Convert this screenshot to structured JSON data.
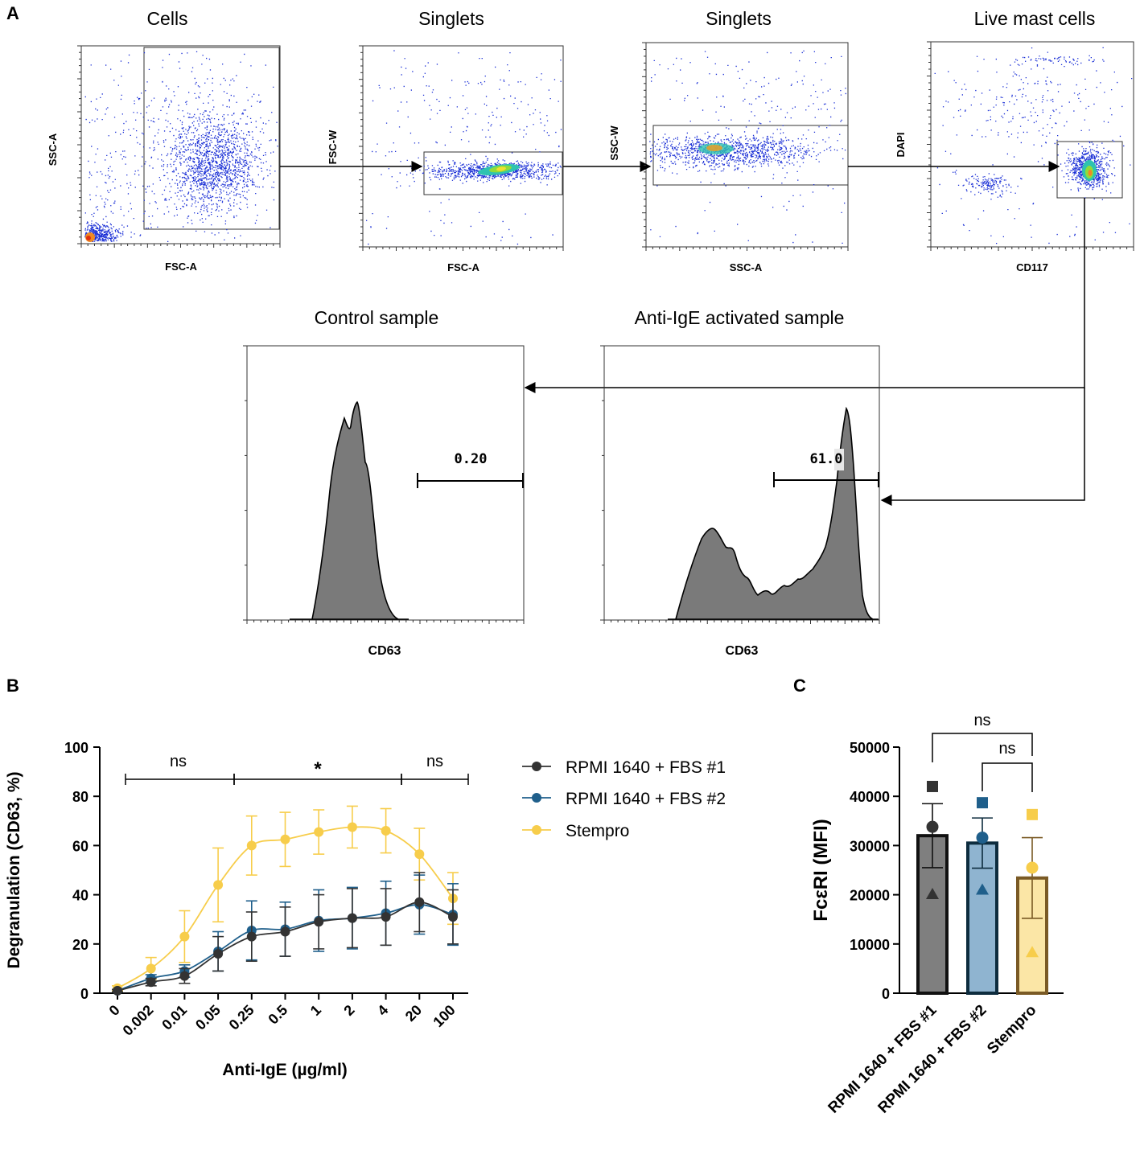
{
  "panel_labels": {
    "a": "A",
    "b": "B",
    "c": "C"
  },
  "colors": {
    "rpmi1": "#333333",
    "rpmi2": "#1f5f8b",
    "stempro": "#f7cd4b",
    "bar_rpmi1_fill": "#7f7f7f",
    "bar_rpmi2_fill": "#8fb4d0",
    "bar_stempro_fill": "#fbe6a6",
    "bar_stempro_edge": "#7a5a25",
    "hist_fill": "#7a7a7a"
  },
  "panel_a": {
    "plots": [
      {
        "title": "Cells",
        "xlabel": "FSC-A",
        "ylabel": "SSC-A"
      },
      {
        "title": "Singlets",
        "xlabel": "FSC-A",
        "ylabel": "FSC-W"
      },
      {
        "title": "Singlets",
        "xlabel": "SSC-A",
        "ylabel": "SSC-W"
      },
      {
        "title": "Live mast cells",
        "xlabel": "CD117",
        "ylabel": "DAPI"
      }
    ],
    "histograms": [
      {
        "title": "Control sample",
        "xlabel": "CD63",
        "gate_value": "0.20"
      },
      {
        "title": "Anti-IgE activated sample",
        "xlabel": "CD63",
        "gate_value": "61.0"
      }
    ]
  },
  "chart_data": [
    {
      "type": "line",
      "panel": "B",
      "xlabel": "Anti-IgE (µg/ml)",
      "ylabel": "Degranulation (CD63, %)",
      "categories": [
        "0",
        "0.002",
        "0.01",
        "0.05",
        "0.25",
        "0.5",
        "1",
        "2",
        "4",
        "20",
        "100"
      ],
      "ylim": [
        0,
        100
      ],
      "yticks": [
        "0",
        "20",
        "40",
        "60",
        "80",
        "100"
      ],
      "series": [
        {
          "name": "RPMI 1640 + FBS #1",
          "values": [
            1,
            4.5,
            7,
            16,
            23,
            25,
            29,
            30.5,
            31,
            37,
            31
          ],
          "errors": [
            0.5,
            1.5,
            3,
            7,
            10,
            10,
            11,
            12,
            11.5,
            12,
            11
          ]
        },
        {
          "name": "RPMI 1640 + FBS #2",
          "values": [
            1,
            6,
            9,
            17,
            25.5,
            26,
            29.5,
            30.5,
            32.5,
            36,
            32
          ],
          "errors": [
            0.5,
            1.5,
            2.5,
            8,
            12,
            11,
            12.5,
            12.5,
            13,
            12,
            12.5
          ]
        },
        {
          "name": "Stempro",
          "values": [
            2,
            10,
            23,
            44,
            60,
            62.5,
            65.5,
            67.5,
            66,
            56.5,
            38.5
          ],
          "errors": [
            1,
            4.5,
            10.5,
            15,
            12,
            11,
            9,
            8.5,
            9,
            10.5,
            10.5
          ]
        }
      ],
      "significance": [
        {
          "label": "ns",
          "from": "0.002",
          "to": "0.05"
        },
        {
          "label": "*",
          "from": "0.25",
          "to": "4"
        },
        {
          "label": "ns",
          "from": "20",
          "to": "100"
        }
      ]
    },
    {
      "type": "bar",
      "panel": "C",
      "ylabel": "FcεRI (MFI)",
      "categories": [
        "RPMI 1640 + FBS #1",
        "RPMI 1640 + FBS #2",
        "Stempro"
      ],
      "values": [
        32000,
        30500,
        23400
      ],
      "sem": [
        6500,
        5100,
        8200
      ],
      "points": [
        [
          42000,
          33800,
          20100
        ],
        [
          38700,
          31600,
          21000
        ],
        [
          36300,
          25500,
          8300
        ]
      ],
      "point_markers": [
        "square",
        "circle",
        "triangle"
      ],
      "ylim": [
        0,
        50000
      ],
      "yticks": [
        "0",
        "10000",
        "20000",
        "30000",
        "40000",
        "50000"
      ],
      "significance": [
        {
          "label": "ns",
          "from": "RPMI 1640 + FBS #1",
          "to": "Stempro"
        },
        {
          "label": "ns",
          "from": "RPMI 1640 + FBS #2",
          "to": "Stempro"
        }
      ]
    }
  ]
}
